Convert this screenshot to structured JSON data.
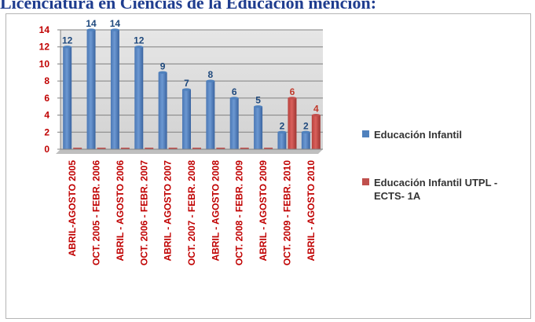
{
  "page_title": "Licenciatura en Ciencias de la Educación mención:",
  "chart_data": {
    "type": "bar",
    "categories": [
      "ABRIL-AGOSTO 2005",
      "OCT. 2005 - FEBR. 2006",
      "ABRIL - AGOSTO 2006",
      "OCT. 2006 - FEBR. 2007",
      "ABRIL - AGOSTO 2007",
      "OCT. 2007 - FEBR. 2008",
      "ABRIL - AGOSTO 2008",
      "OCT. 2008 - FEBR. 2009",
      "ABRIL - AGOSTO 2009",
      "OCT. 2009 - FEBR. 2010",
      "ABRIL - AGOSTO 2010"
    ],
    "series": [
      {
        "name": "Educación Infantil",
        "color": "#4f81bd",
        "label_color": "#1f497d",
        "values": [
          12,
          14,
          14,
          12,
          9,
          7,
          8,
          6,
          5,
          2,
          2
        ]
      },
      {
        "name": "Educación Infantil UTPL - ECTS- 1A",
        "color": "#c0504d",
        "label_color": "#c0392b",
        "values": [
          0,
          0,
          0,
          0,
          0,
          0,
          0,
          0,
          0,
          6,
          4
        ]
      }
    ],
    "ylim": [
      0,
      14
    ],
    "yticks": [
      0,
      2,
      4,
      6,
      8,
      10,
      12,
      14
    ],
    "grid": true,
    "legend_position": "right",
    "tick_label_color": "#c00000"
  }
}
